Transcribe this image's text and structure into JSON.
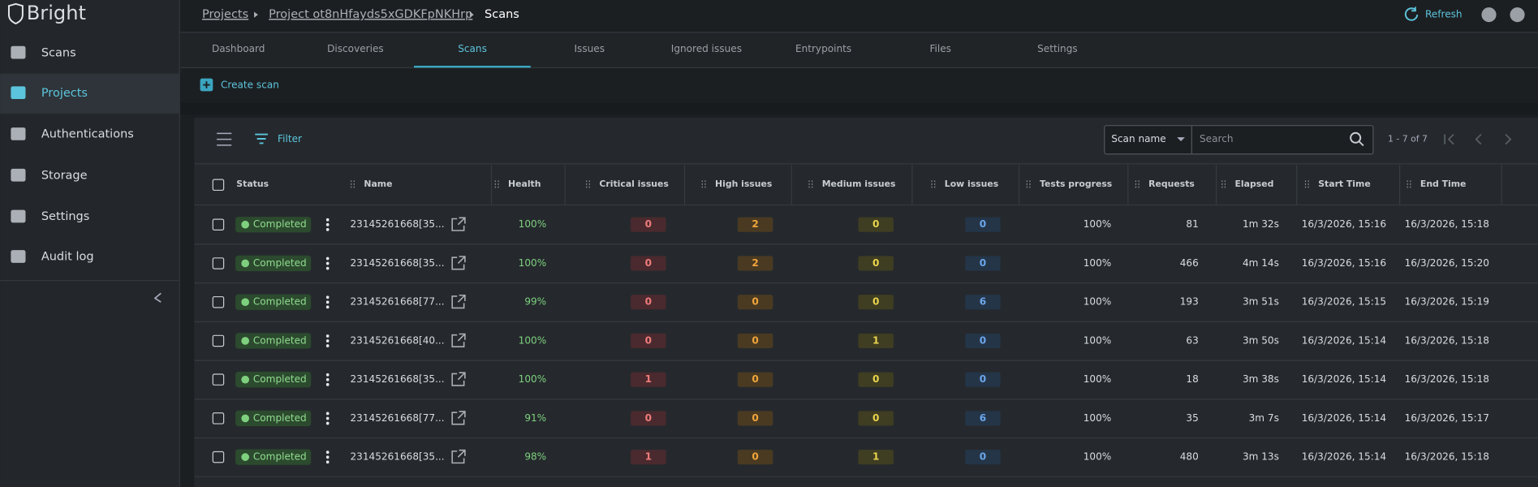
{
  "sidebar": {
    "logo": "Bright",
    "nav": [
      "Scans",
      "Projects",
      "Authentications",
      "Storage",
      "Settings",
      "Audit log"
    ]
  },
  "breadcrumb": [
    "Projects",
    "Project ot8nHfayds5xGDKFpNKHrp",
    "Scans"
  ],
  "refresh": "Refresh",
  "tabs": [
    "Dashboard",
    "Discoveries",
    "Scans",
    "Issues",
    "Ignored issues",
    "Entrypoints",
    "Files",
    "Settings"
  ],
  "create_scan": "Create scan",
  "toolbar": {
    "filter": "Filter",
    "search_field": "Scan name",
    "search_placeholder": "Search",
    "pagination": "1 - 7 of 7"
  },
  "table": {
    "columns": [
      "Status",
      "Name",
      "Health",
      "Critical issues",
      "High issues",
      "Medium issues",
      "Low issues",
      "Tests progress",
      "Requests",
      "Elapsed",
      "Start Time",
      "End Time"
    ],
    "rows": [
      [
        "Completed",
        "23145261668[35...",
        "100%",
        0,
        2,
        0,
        0,
        "100%",
        81,
        "1m 32s",
        "16/3/2026, 15:16",
        "16/3/2026, 15:18"
      ],
      [
        "Completed",
        "23145261668[35...",
        "100%",
        0,
        2,
        0,
        0,
        "100%",
        466,
        "4m 14s",
        "16/3/2026, 15:16",
        "16/3/2026, 15:20"
      ],
      [
        "Completed",
        "23145261668[77...",
        "99%",
        0,
        0,
        0,
        6,
        "100%",
        193,
        "3m 51s",
        "16/3/2026, 15:15",
        "16/3/2026, 15:19"
      ],
      [
        "Completed",
        "23145261668[40...",
        "100%",
        0,
        0,
        1,
        0,
        "100%",
        63,
        "3m 50s",
        "16/3/2026, 15:14",
        "16/3/2026, 15:18"
      ],
      [
        "Completed",
        "23145261668[35...",
        "100%",
        1,
        0,
        0,
        0,
        "100%",
        18,
        "3m 38s",
        "16/3/2026, 15:14",
        "16/3/2026, 15:18"
      ],
      [
        "Completed",
        "23145261668[77...",
        "91%",
        0,
        0,
        0,
        6,
        "100%",
        35,
        "3m 7s",
        "16/3/2026, 15:14",
        "16/3/2026, 15:17"
      ],
      [
        "Completed",
        "23145261668[35...",
        "98%",
        1,
        0,
        1,
        0,
        "100%",
        480,
        "3m 13s",
        "16/3/2026, 15:14",
        "16/3/2026, 15:18"
      ]
    ]
  }
}
